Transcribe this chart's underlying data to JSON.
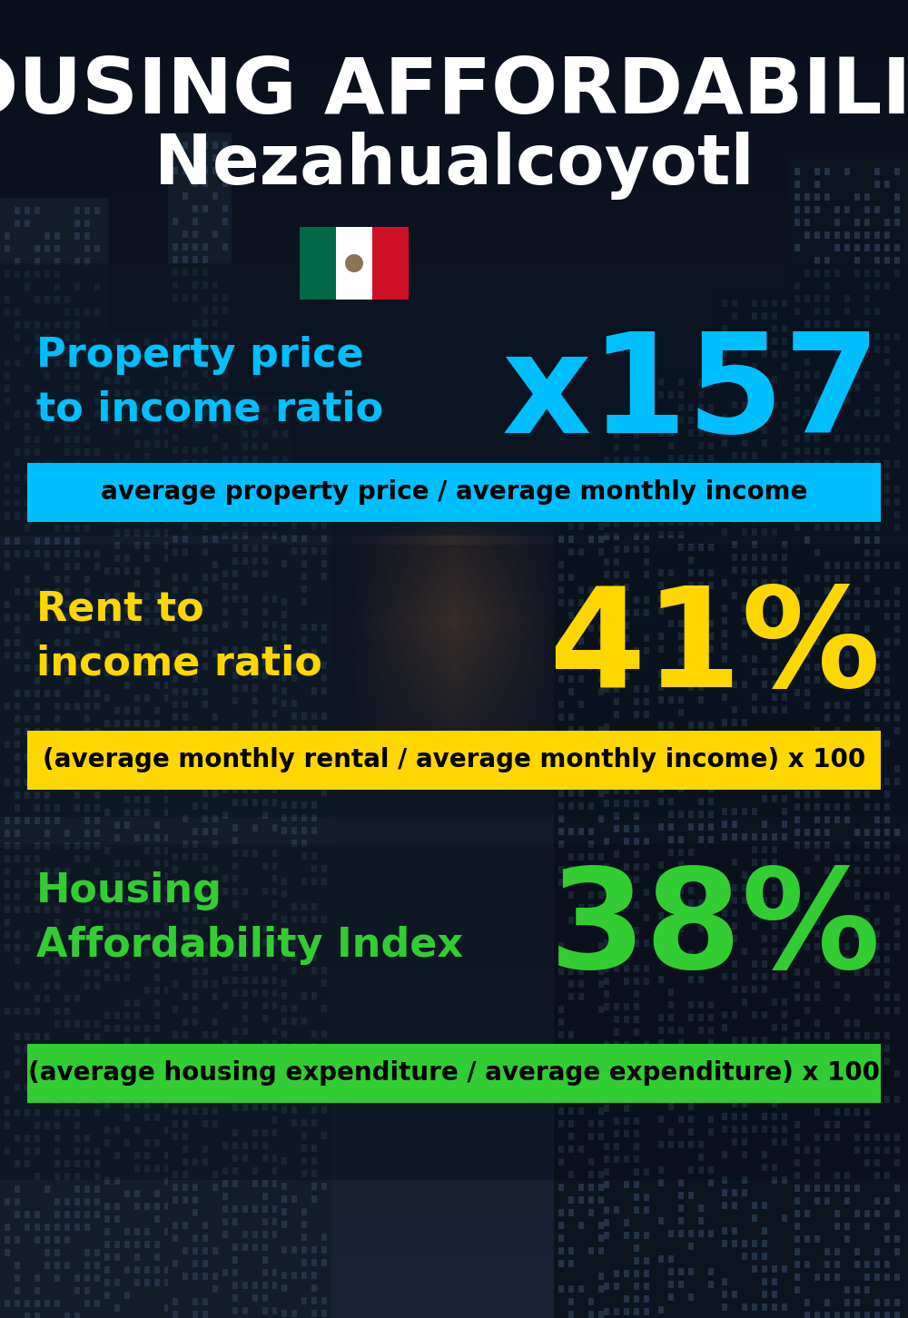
{
  "title_line1": "HOUSING AFFORDABILITY",
  "title_line2": "Nezahualcoyotl",
  "bg_color": "#080e18",
  "title1_color": "#ffffff",
  "title2_color": "#ffffff",
  "section1_label": "Property price\nto income ratio",
  "section1_value": "x157",
  "section1_label_color": "#00bfff",
  "section1_value_color": "#00bfff",
  "section1_banner_text": "average property price / average monthly income",
  "section1_banner_bg": "#00bfff",
  "section1_banner_text_color": "#000000",
  "section2_label": "Rent to\nincome ratio",
  "section2_value": "41%",
  "section2_label_color": "#ffd700",
  "section2_value_color": "#ffd700",
  "section2_banner_text": "(average monthly rental / average monthly income) x 100",
  "section2_banner_bg": "#ffd700",
  "section2_banner_text_color": "#000000",
  "section3_label": "Housing\nAffordability Index",
  "section3_value": "38%",
  "section3_label_color": "#32cd32",
  "section3_value_color": "#32cd32",
  "section3_banner_text": "(average housing expenditure / average expenditure) x 100",
  "section3_banner_bg": "#32cd32",
  "section3_banner_text_color": "#000000",
  "flag_green": "#006847",
  "flag_white": "#ffffff",
  "flag_red": "#ce1126"
}
